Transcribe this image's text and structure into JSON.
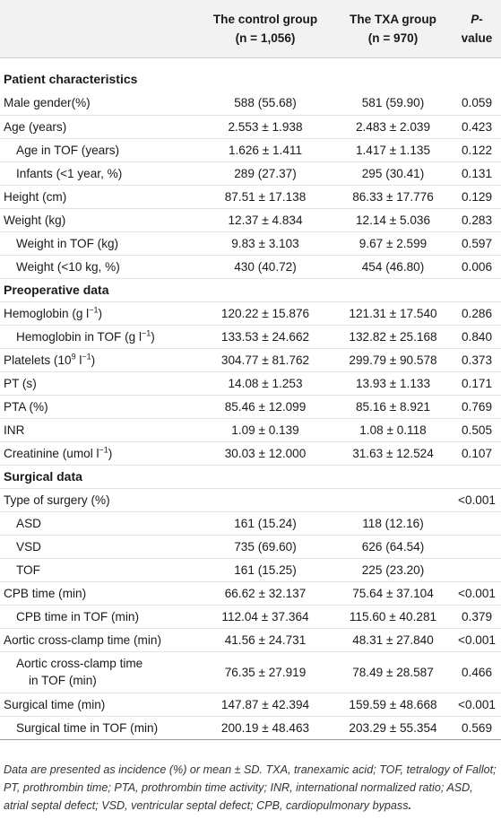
{
  "table": {
    "headers": {
      "col1": "",
      "control_l1": "The control group",
      "control_l2": "(n = 1,056)",
      "txa_l1": "The TXA group",
      "txa_l2": "(n = 970)",
      "p_l1": "P-",
      "p_l2": "value"
    },
    "sections": {
      "patient": "Patient characteristics",
      "preop": "Preoperative data",
      "surgical": "Surgical data"
    },
    "rows": [
      {
        "label": "Male gender(%)",
        "control": "588 (55.68)",
        "txa": "581 (59.90)",
        "p": "0.059"
      },
      {
        "label": "Age (years)",
        "control": "2.553 ± 1.938",
        "txa": "2.483 ± 2.039",
        "p": "0.423"
      },
      {
        "label": "Age in TOF (years)",
        "control": "1.626 ± 1.411",
        "txa": "1.417 ± 1.135",
        "p": "0.122"
      },
      {
        "label": "Infants (<1 year, %)",
        "control": "289 (27.37)",
        "txa": "295 (30.41)",
        "p": "0.131"
      },
      {
        "label": "Height (cm)",
        "control": "87.51 ± 17.138",
        "txa": "86.33 ± 17.776",
        "p": "0.129"
      },
      {
        "label": "Weight (kg)",
        "control": "12.37 ± 4.834",
        "txa": "12.14 ± 5.036",
        "p": "0.283"
      },
      {
        "label": "Weight in TOF (kg)",
        "control": "9.83 ± 3.103",
        "txa": "9.67 ± 2.599",
        "p": "0.597"
      },
      {
        "label": "Weight (<10 kg, %)",
        "control": "430 (40.72)",
        "txa": "454 (46.80)",
        "p": "0.006"
      },
      {
        "label_pre": "Hemoglobin (g l",
        "label_sup": "−1",
        "label_post": ")",
        "control": "120.22 ± 15.876",
        "txa": "121.31 ± 17.540",
        "p": "0.286"
      },
      {
        "label_pre": "Hemoglobin in TOF (g l",
        "label_sup": "−1",
        "label_post": ")",
        "control": "133.53 ± 24.662",
        "txa": "132.82 ± 25.168",
        "p": "0.840"
      },
      {
        "label_pre": "Platelets (10",
        "label_sup": "9",
        "label_mid": " l",
        "label_sup2": "−1",
        "label_post": ")",
        "control": "304.77 ± 81.762",
        "txa": "299.79 ± 90.578",
        "p": "0.373"
      },
      {
        "label": "PT (s)",
        "control": "14.08 ± 1.253",
        "txa": "13.93 ± 1.133",
        "p": "0.171"
      },
      {
        "label": "PTA (%)",
        "control": "85.46 ± 12.099",
        "txa": "85.16 ± 8.921",
        "p": "0.769"
      },
      {
        "label": "INR",
        "control": "1.09 ± 0.139",
        "txa": "1.08 ± 0.118",
        "p": "0.505"
      },
      {
        "label_pre": "Creatinine (umol l",
        "label_sup": "−1",
        "label_post": ")",
        "control": "30.03 ± 12.000",
        "txa": "31.63 ± 12.524",
        "p": "0.107"
      },
      {
        "label": "Type of surgery (%)",
        "control": "",
        "txa": "",
        "p": "<0.001"
      },
      {
        "label": "ASD",
        "control": "161 (15.24)",
        "txa": "118 (12.16)",
        "p": ""
      },
      {
        "label": "VSD",
        "control": "735 (69.60)",
        "txa": "626 (64.54)",
        "p": ""
      },
      {
        "label": "TOF",
        "control": "161 (15.25)",
        "txa": "225 (23.20)",
        "p": ""
      },
      {
        "label": "CPB time (min)",
        "control": "66.62 ± 32.137",
        "txa": "75.64 ± 37.104",
        "p": "<0.001"
      },
      {
        "label": "CPB time in TOF (min)",
        "control": "112.04 ± 37.364",
        "txa": "115.60 ± 40.281",
        "p": "0.379"
      },
      {
        "label": "Aortic cross-clamp time (min)",
        "control": "41.56 ± 24.731",
        "txa": "48.31 ± 27.840",
        "p": "<0.001"
      },
      {
        "label_l1": "Aortic cross-clamp time",
        "label_l2": "in TOF (min)",
        "control": "76.35 ± 27.919",
        "txa": "78.49 ± 28.587",
        "p": "0.466"
      },
      {
        "label": "Surgical time (min)",
        "control": "147.87 ± 42.394",
        "txa": "159.59 ± 48.668",
        "p": "<0.001"
      },
      {
        "label": "Surgical time in TOF (min)",
        "control": "200.19 ± 48.463",
        "txa": "203.29 ± 55.354",
        "p": "0.569"
      }
    ]
  },
  "footnote": {
    "text": "Data are presented as incidence (%) or mean ± SD. TXA, tranexamic acid; TOF, tetralogy of Fallot; PT, prothrombin time; PTA, prothrombin time activity; INR, international normalized ratio; ASD, atrial septal defect; VSD, ventricular septal defect; CPB, cardiopulmonary bypass",
    "end": "."
  }
}
